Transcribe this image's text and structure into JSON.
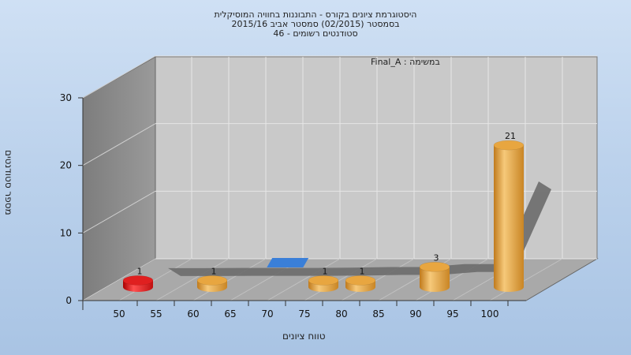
{
  "title_lines": [
    "היסטוגרמת ציונים בקורס - התבוננות בחוויה המוסיקלית",
    "בסמסטר  (02/2015)  סמסטר אביב 2015/16",
    "סטודנטים רשומים - 46"
  ],
  "chart_data": {
    "type": "bar",
    "subtitle": "במשימה : Final_A",
    "xlabel": "טווח ציונים",
    "ylabel": "מספר סטודנטים",
    "ylim": [
      0,
      30
    ],
    "y_ticks": [
      "0",
      "10",
      "20",
      "30"
    ],
    "x_ticks": [
      "50",
      "55",
      "60",
      "65",
      "70",
      "75",
      "80",
      "85",
      "90",
      "95",
      "100"
    ],
    "bars": [
      {
        "bin": "50",
        "value": 1,
        "label": "1",
        "color": "#e02020"
      },
      {
        "bin": "60",
        "value": 1,
        "label": "1",
        "color": "#e8a640"
      },
      {
        "bin": "75",
        "value": 1,
        "label": "1",
        "color": "#e8a640"
      },
      {
        "bin": "80",
        "value": 1,
        "label": "1",
        "color": "#e8a640"
      },
      {
        "bin": "90",
        "value": 3,
        "label": "3",
        "color": "#e8a640"
      },
      {
        "bin": "100",
        "value": 21,
        "label": "21",
        "color": "#e8a640"
      }
    ],
    "cumulative_ribbon": {
      "color": "#6e6e6e",
      "highlight_color": "#3a7fd8"
    },
    "grid": true,
    "colors": {
      "wall": "#c8c8c8",
      "side_wall": "#8a8a8a",
      "floor": "#a8a8a8"
    }
  }
}
